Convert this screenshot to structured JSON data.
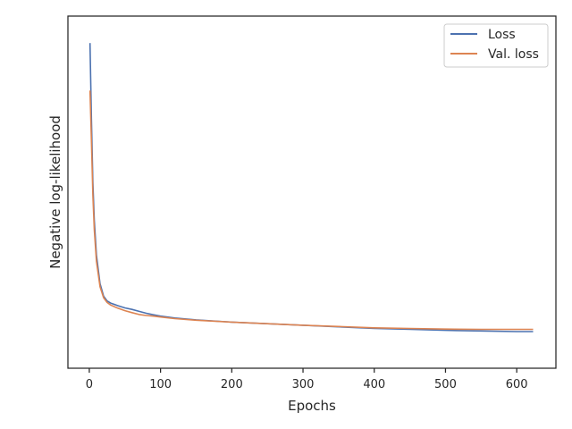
{
  "chart_data": {
    "type": "line",
    "title": "",
    "xlabel": "Epochs",
    "ylabel": "Negative log-likelihood",
    "xlim": [
      -30,
      655
    ],
    "ylim": [
      0,
      1
    ],
    "x_ticks": [
      0,
      100,
      200,
      300,
      400,
      500,
      600
    ],
    "y_ticks_labeled": false,
    "grid": false,
    "legend_position": "top-right",
    "series": [
      {
        "name": "Loss",
        "color": "#4c72b0",
        "x": [
          1,
          3,
          5,
          7,
          10,
          15,
          20,
          25,
          30,
          40,
          50,
          60,
          70,
          80,
          90,
          100,
          120,
          150,
          200,
          250,
          300,
          350,
          400,
          450,
          500,
          550,
          600,
          623
        ],
        "y": [
          0.96,
          0.72,
          0.52,
          0.4,
          0.29,
          0.2,
          0.16,
          0.145,
          0.138,
          0.13,
          0.123,
          0.118,
          0.112,
          0.106,
          0.101,
          0.097,
          0.091,
          0.085,
          0.078,
          0.073,
          0.068,
          0.063,
          0.058,
          0.055,
          0.052,
          0.05,
          0.048,
          0.048
        ]
      },
      {
        "name": "Val. loss",
        "color": "#dd8452",
        "x": [
          1,
          3,
          5,
          7,
          10,
          15,
          20,
          25,
          30,
          40,
          50,
          60,
          70,
          80,
          90,
          100,
          120,
          150,
          200,
          250,
          300,
          350,
          400,
          450,
          500,
          550,
          600,
          623
        ],
        "y": [
          0.81,
          0.65,
          0.48,
          0.37,
          0.27,
          0.19,
          0.155,
          0.14,
          0.132,
          0.122,
          0.114,
          0.108,
          0.102,
          0.099,
          0.097,
          0.094,
          0.089,
          0.084,
          0.078,
          0.073,
          0.068,
          0.064,
          0.06,
          0.058,
          0.056,
          0.055,
          0.055,
          0.055
        ]
      }
    ]
  }
}
